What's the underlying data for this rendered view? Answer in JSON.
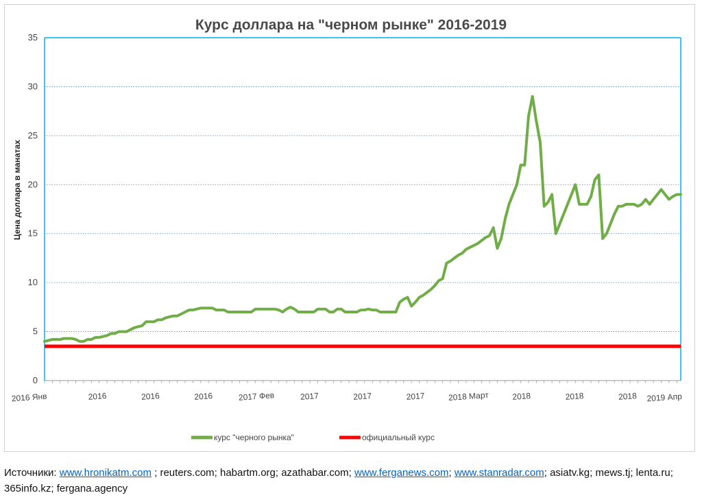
{
  "chart_data": {
    "type": "line",
    "title": "Курс доллара на \"черном рынке\" 2016-2019",
    "ylabel": "Цена доллара в манатах",
    "xlabel": "",
    "ylim": [
      0,
      35
    ],
    "yticks": [
      0,
      5,
      10,
      15,
      20,
      25,
      30,
      35
    ],
    "x_tick_labels": [
      "2016 Янв",
      "2016",
      "2016",
      "2016",
      "2017 Фев",
      "2017",
      "2017",
      "2017",
      "2018 Март",
      "2018",
      "2018",
      "2018",
      "2019 Апр"
    ],
    "grid": "horizontal",
    "legend_position": "bottom",
    "series": [
      {
        "name": "курс \"черного рынка\"",
        "color": "#70ad47",
        "values": [
          4.0,
          4.1,
          4.2,
          4.2,
          4.2,
          4.3,
          4.3,
          4.3,
          4.2,
          4.0,
          4.0,
          4.2,
          4.2,
          4.4,
          4.4,
          4.5,
          4.6,
          4.8,
          4.8,
          5.0,
          5.0,
          5.0,
          5.2,
          5.4,
          5.5,
          5.6,
          6.0,
          6.0,
          6.0,
          6.2,
          6.2,
          6.4,
          6.5,
          6.6,
          6.6,
          6.8,
          7.0,
          7.2,
          7.2,
          7.3,
          7.4,
          7.4,
          7.4,
          7.4,
          7.2,
          7.2,
          7.2,
          7.0,
          7.0,
          7.0,
          7.0,
          7.0,
          7.0,
          7.0,
          7.3,
          7.3,
          7.3,
          7.3,
          7.3,
          7.3,
          7.2,
          7.0,
          7.3,
          7.5,
          7.3,
          7.0,
          7.0,
          7.0,
          7.0,
          7.0,
          7.3,
          7.3,
          7.3,
          7.0,
          7.0,
          7.3,
          7.3,
          7.0,
          7.0,
          7.0,
          7.0,
          7.2,
          7.2,
          7.3,
          7.2,
          7.2,
          7.0,
          7.0,
          7.0,
          7.0,
          7.0,
          8.0,
          8.3,
          8.5,
          7.6,
          8.0,
          8.5,
          8.7,
          9.0,
          9.3,
          9.7,
          10.2,
          10.4,
          12.0,
          12.2,
          12.5,
          12.8,
          13.0,
          13.4,
          13.6,
          13.8,
          14.0,
          14.3,
          14.6,
          14.8,
          15.6,
          13.5,
          14.5,
          16.5,
          18.0,
          19.0,
          20.0,
          22.0,
          22.0,
          27.0,
          29.0,
          26.5,
          24.3,
          17.8,
          18.2,
          19.0,
          15.0,
          16.0,
          17.0,
          18.0,
          19.0,
          20.0,
          18.0,
          18.0,
          18.0,
          18.8,
          20.5,
          21.0,
          14.5,
          15.0,
          16.0,
          17.0,
          17.8,
          17.8,
          18.0,
          18.0,
          18.0,
          17.8,
          18.0,
          18.5,
          18.0,
          18.5,
          19.0,
          19.5,
          19.0,
          18.5,
          18.8,
          19.0,
          19.0
        ]
      },
      {
        "name": "официальный курс",
        "color": "#ff0000",
        "values": [
          3.5,
          3.5
        ]
      }
    ]
  },
  "sources": {
    "label": "Источники:",
    "link1": "www.hronikatm.com",
    "text1": " ; reuters.com; habartm.org; azathabar.com; ",
    "link2": "www.ferganews.com",
    "text2": "; ",
    "link3": "www.stanradar.com",
    "text3": "; asiatv.kg; mews.tj; lenta.ru; 365info.kz; fergana.agency"
  }
}
